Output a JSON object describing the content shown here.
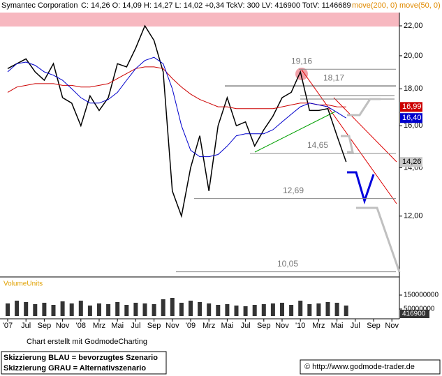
{
  "chart_data": {
    "type": "line",
    "log_scale": true,
    "grid": false,
    "title": "Symantec Corporation",
    "quote": "C: 14,26 O: 14,09 H: 14,27 L: 14,02 +0,34 TckV: 300 LV: 416900 TotV: 1146689",
    "categories": [
      "'07",
      null,
      "Jul",
      null,
      "Sep",
      null,
      "Nov",
      null,
      "'08",
      null,
      "Mrz",
      null,
      "Mai",
      null,
      "Jul",
      null,
      "Sep",
      null,
      "Nov",
      null,
      "'09",
      null,
      "Mrz",
      null,
      "Mai",
      null,
      "Jul",
      null,
      "Sep",
      null,
      "Nov",
      null,
      "'10",
      null,
      "Mrz",
      null,
      "Mai",
      null,
      "Jul",
      null,
      "Sep",
      null,
      "Nov"
    ],
    "series": [
      {
        "name": "Symantec Corporation",
        "color": "#000000",
        "values": [
          19.2,
          19.5,
          19.8,
          19.0,
          18.5,
          19.5,
          17.5,
          17.2,
          16.0,
          17.6,
          16.8,
          17.5,
          19.5,
          19.3,
          20.5,
          22.0,
          21.0,
          19.0,
          13.0,
          12.0,
          14.0,
          15.5,
          13.0,
          16.0,
          17.5,
          16.0,
          16.2,
          15.0,
          15.8,
          16.5,
          17.5,
          17.8,
          19.0,
          16.8,
          16.8,
          16.9,
          15.5,
          14.26,
          null,
          null,
          null,
          null,
          null
        ],
        "value_labels": [
          null,
          null,
          null,
          null,
          null,
          null,
          null,
          null,
          null,
          null,
          null,
          null,
          null,
          null,
          null,
          null,
          null,
          null,
          null,
          null,
          null,
          null,
          null,
          null,
          null,
          null,
          null,
          null,
          null,
          null,
          null,
          null,
          null,
          null,
          null,
          null,
          null,
          "14,26",
          null,
          null,
          null,
          null,
          null
        ]
      },
      {
        "name": "move(200, 0)",
        "color": "#cc0000",
        "values": [
          17.8,
          18.1,
          18.2,
          18.3,
          18.3,
          18.3,
          18.2,
          18.2,
          18.1,
          18.1,
          18.2,
          18.3,
          18.6,
          18.9,
          19.2,
          19.3,
          19.3,
          19.2,
          18.6,
          18.1,
          17.7,
          17.4,
          17.2,
          17.0,
          17.0,
          16.9,
          16.9,
          16.9,
          16.9,
          16.9,
          17.0,
          17.1,
          17.2,
          17.2,
          17.1,
          17.1,
          17.0,
          16.99,
          null,
          null,
          null,
          null,
          null
        ],
        "value_labels": [
          null,
          null,
          null,
          null,
          null,
          null,
          null,
          null,
          null,
          null,
          null,
          null,
          null,
          null,
          null,
          null,
          null,
          null,
          null,
          null,
          null,
          null,
          null,
          null,
          null,
          null,
          null,
          null,
          null,
          null,
          null,
          null,
          null,
          null,
          null,
          null,
          null,
          "16,99",
          null,
          null,
          null,
          null,
          null
        ]
      },
      {
        "name": "move(50, 0)",
        "color": "#0000cc",
        "values": [
          19.0,
          19.5,
          19.6,
          19.4,
          19.0,
          18.8,
          18.5,
          18.0,
          17.5,
          17.2,
          17.2,
          17.4,
          17.8,
          18.5,
          19.2,
          19.7,
          19.9,
          19.5,
          18.0,
          16.0,
          14.8,
          14.5,
          14.5,
          14.6,
          15.0,
          15.5,
          15.6,
          15.6,
          15.6,
          15.8,
          16.2,
          16.6,
          17.0,
          17.2,
          17.1,
          17.0,
          16.7,
          16.4,
          null,
          null,
          null,
          null,
          null
        ],
        "value_labels": [
          null,
          null,
          null,
          null,
          null,
          null,
          null,
          null,
          null,
          null,
          null,
          null,
          null,
          null,
          null,
          null,
          null,
          null,
          null,
          null,
          null,
          null,
          null,
          null,
          null,
          null,
          null,
          null,
          null,
          null,
          null,
          null,
          null,
          null,
          null,
          null,
          null,
          "16,40",
          null,
          null,
          null,
          null,
          null
        ]
      }
    ],
    "ylim": [
      9.93,
      22.95
    ],
    "yticks": [
      {
        "value": 12,
        "label": "12,00"
      },
      {
        "value": 14,
        "label": "14,00"
      },
      {
        "value": 16,
        "label": "16,00"
      },
      {
        "value": 18,
        "label": "18,00"
      },
      {
        "value": 20,
        "label": "20,00"
      },
      {
        "value": 22,
        "label": "22,00"
      }
    ],
    "levels": [
      {
        "value": 19.16,
        "label": "19,16"
      },
      {
        "value": 18.17,
        "label": "18,17"
      },
      {
        "value": 14.65,
        "label": "14,65"
      },
      {
        "value": 12.69,
        "label": "12,69"
      },
      {
        "value": 10.05,
        "label": "10,05"
      }
    ],
    "volume": {
      "label": "VolumeUnits",
      "color": "#333333",
      "ylim": [
        0,
        250000000
      ],
      "yticks": [
        50000000,
        150000000
      ],
      "last": 416900,
      "values": [
        90000000,
        110000000,
        100000000,
        85000000,
        95000000,
        80000000,
        105000000,
        90000000,
        110000000,
        75000000,
        90000000,
        85000000,
        100000000,
        80000000,
        95000000,
        90000000,
        85000000,
        120000000,
        130000000,
        95000000,
        110000000,
        100000000,
        90000000,
        80000000,
        85000000,
        75000000,
        70000000,
        80000000,
        85000000,
        90000000,
        95000000,
        80000000,
        110000000,
        85000000,
        90000000,
        100000000,
        95000000,
        75000000,
        null,
        null,
        null,
        null,
        null
      ]
    }
  },
  "footer": {
    "credit": "Chart erstellt mit GodmodeCharting",
    "note_blue": "Skizzierung BLAU = bevorzugtes Szenario",
    "note_gray": "Skizzierung GRAU = Alternativszenario",
    "copyright": "© http://www.godmode-trader.de"
  }
}
